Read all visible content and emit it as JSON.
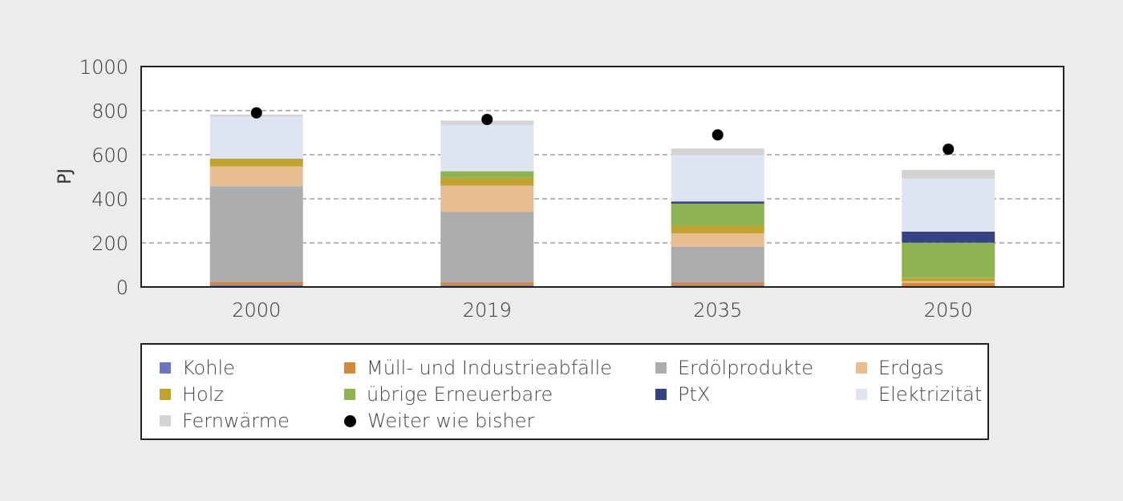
{
  "chart_data": {
    "type": "bar",
    "stacked": true,
    "title": "",
    "xlabel": "",
    "ylabel": "PJ",
    "ylim": [
      0,
      1000
    ],
    "yticks": [
      0,
      200,
      400,
      600,
      800,
      1000
    ],
    "grid": "horizontal-dashed",
    "legend_position": "bottom",
    "categories": [
      "2000",
      "2019",
      "2035",
      "2050"
    ],
    "series": [
      {
        "name": "Kohle",
        "color": "#6a74c0",
        "values": [
          10,
          8,
          8,
          3
        ]
      },
      {
        "name": "Müll- und Industrieabfälle",
        "color": "#d4883c",
        "values": [
          12,
          12,
          12,
          15
        ]
      },
      {
        "name": "Erdölprodukte",
        "color": "#acacac",
        "values": [
          435,
          320,
          163,
          0
        ]
      },
      {
        "name": "Erdgas",
        "color": "#e8bd92",
        "values": [
          90,
          120,
          60,
          8
        ]
      },
      {
        "name": "Holz",
        "color": "#c0a22e",
        "values": [
          35,
          35,
          35,
          15
        ]
      },
      {
        "name": "übrige Erneuerbare",
        "color": "#8db352",
        "values": [
          0,
          30,
          100,
          160
        ]
      },
      {
        "name": "PtX",
        "color": "#354480",
        "values": [
          0,
          0,
          10,
          50
        ]
      },
      {
        "name": "Elektrizität",
        "color": "#dfe4f3",
        "values": [
          190,
          210,
          210,
          240
        ]
      },
      {
        "name": "Fernwärme",
        "color": "#d4d4d4",
        "values": [
          10,
          20,
          30,
          40
        ]
      }
    ],
    "markers": {
      "name": "Weiter wie bisher",
      "color": "#000000",
      "values": [
        790,
        760,
        690,
        625
      ]
    }
  }
}
